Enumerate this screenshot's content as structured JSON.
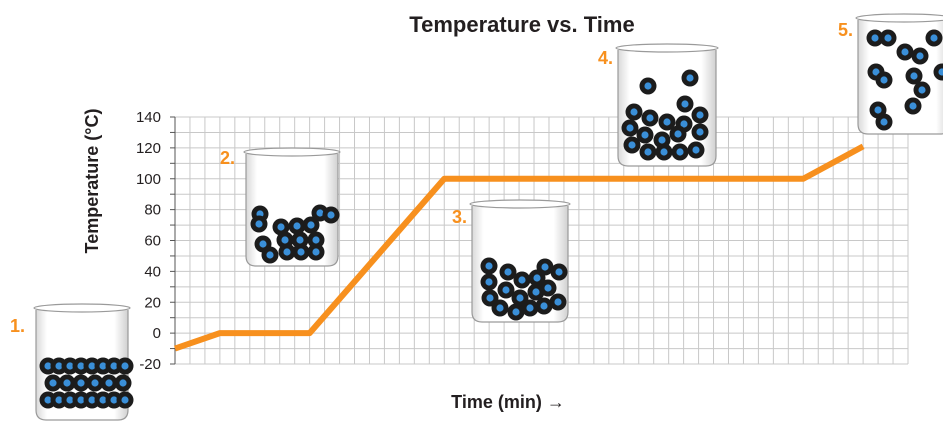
{
  "chart_data": {
    "type": "line",
    "title": "Temperature vs. Time",
    "xlabel": "Time (min) →",
    "ylabel": "Temperature (°C)",
    "ylim": [
      -20,
      140
    ],
    "yticks": [
      "140",
      "120",
      "100",
      "80",
      "60",
      "40",
      "20",
      "0",
      "-20"
    ],
    "grid": true,
    "series": [
      {
        "color": "#f7901e",
        "x": [
          0,
          3,
          9,
          18,
          42,
          46
        ],
        "y": [
          -10,
          0,
          0,
          100,
          100,
          121
        ]
      }
    ],
    "x_range": [
      0,
      49
    ],
    "stages": [
      {
        "label": "1.",
        "state": "solid",
        "particles": 22
      },
      {
        "label": "2.",
        "state": "liquid",
        "particles": 15
      },
      {
        "label": "3.",
        "state": "liquid",
        "particles": 17
      },
      {
        "label": "4.",
        "state": "liquid-gas",
        "particles": 19
      },
      {
        "label": "5.",
        "state": "gas",
        "particles": 13
      }
    ]
  },
  "colors": {
    "line": "#f7901e",
    "grid": "#c8c8c8",
    "text": "#231f20",
    "particle_outer": "#1c1c1c",
    "particle_inner": "#3a8fd8"
  }
}
